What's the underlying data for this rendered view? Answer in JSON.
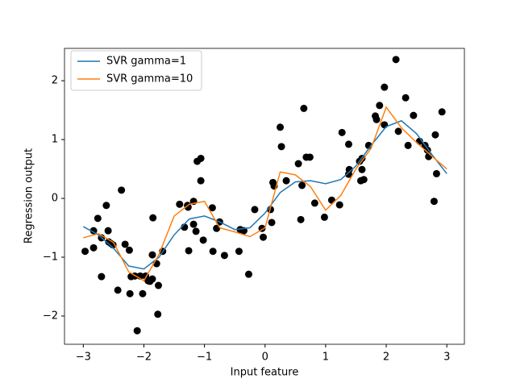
{
  "chart_data": {
    "type": "line",
    "xlabel": "Input feature",
    "ylabel": "Regression output",
    "x": [
      -3,
      -2.75,
      -2.5,
      -2.25,
      -2,
      -1.75,
      -1.5,
      -1.25,
      -1,
      -0.75,
      -0.5,
      -0.25,
      0,
      0.25,
      0.5,
      0.75,
      1,
      1.25,
      1.5,
      1.75,
      2,
      2.25,
      2.5,
      2.75,
      3
    ],
    "series": [
      {
        "name": "SVR gamma=1",
        "color": "#1f77b4",
        "values": [
          -0.48,
          -0.62,
          -0.85,
          -1.15,
          -1.2,
          -1.0,
          -0.62,
          -0.35,
          -0.3,
          -0.4,
          -0.53,
          -0.5,
          -0.25,
          0.1,
          0.28,
          0.3,
          0.25,
          0.32,
          0.55,
          0.9,
          1.22,
          1.32,
          1.1,
          0.75,
          0.42
        ]
      },
      {
        "name": "SVR gamma=10",
        "color": "#ff7f0e",
        "values": [
          -0.67,
          -0.6,
          -0.75,
          -1.25,
          -1.4,
          -0.95,
          -0.3,
          -0.1,
          -0.05,
          -0.5,
          -0.57,
          -0.65,
          -0.5,
          0.45,
          0.4,
          0.2,
          -0.2,
          0.05,
          0.5,
          0.85,
          1.55,
          1.2,
          0.95,
          0.72,
          0.5
        ]
      }
    ],
    "points": {
      "color": "#000000",
      "x": [
        -2.97,
        -2.83,
        -2.83,
        -2.76,
        -2.7,
        -2.7,
        -2.62,
        -2.59,
        -2.58,
        -2.54,
        -2.51,
        -2.43,
        -2.37,
        -2.31,
        -2.24,
        -2.21,
        -2.23,
        -2.15,
        -2.11,
        -2.06,
        -2.02,
        -1.97,
        -1.93,
        -1.9,
        -1.86,
        -1.85,
        -1.86,
        -1.79,
        -1.77,
        -1.76,
        -1.69,
        -1.41,
        -1.33,
        -1.28,
        -1.27,
        -1.26,
        -1.18,
        -1.18,
        -1.14,
        -1.12,
        -1.06,
        -1.06,
        -1.02,
        -0.87,
        -0.86,
        -0.8,
        -0.75,
        -0.67,
        -0.43,
        -0.41,
        -0.35,
        -0.27,
        -0.17,
        -0.05,
        -0.03,
        0.09,
        0.11,
        0.13,
        0.15,
        0.25,
        0.27,
        0.35,
        0.55,
        0.59,
        0.61,
        0.64,
        0.68,
        0.74,
        0.82,
        0.98,
        1.1,
        1.23,
        1.27,
        1.38,
        1.39,
        1.38,
        1.56,
        1.58,
        1.6,
        1.6,
        1.63,
        1.71,
        1.82,
        1.84,
        1.89,
        1.97,
        1.97,
        2.16,
        2.2,
        2.32,
        2.36,
        2.45,
        2.55,
        2.64,
        2.68,
        2.7,
        2.79,
        2.83,
        2.81,
        2.92
      ],
      "values": [
        -0.9,
        -0.55,
        -0.84,
        -0.34,
        -0.67,
        -1.33,
        -0.12,
        -0.55,
        -0.74,
        -0.77,
        -0.79,
        -1.56,
        0.14,
        -0.78,
        -0.88,
        -1.33,
        -1.62,
        -1.32,
        -2.25,
        -1.32,
        -1.62,
        -1.32,
        -1.4,
        -1.41,
        -0.96,
        -0.33,
        -1.37,
        -1.11,
        -1.97,
        -1.48,
        -0.9,
        -0.1,
        -0.49,
        -0.12,
        -0.15,
        -0.89,
        -0.44,
        -0.05,
        -0.56,
        0.63,
        0.68,
        0.3,
        -0.71,
        -0.16,
        -0.9,
        -0.51,
        -0.4,
        -0.97,
        -0.9,
        -0.53,
        -0.55,
        -1.29,
        -0.19,
        -0.51,
        -0.66,
        -0.19,
        -0.41,
        0.27,
        0.21,
        1.21,
        0.88,
        0.3,
        0.59,
        -0.36,
        0.22,
        1.53,
        0.7,
        0.7,
        -0.08,
        -0.32,
        -0.03,
        -0.11,
        1.12,
        0.92,
        0.49,
        0.41,
        0.63,
        0.3,
        0.49,
        0.68,
        0.32,
        0.9,
        1.4,
        1.34,
        1.58,
        1.89,
        1.25,
        2.36,
        1.14,
        1.71,
        0.9,
        1.41,
        0.97,
        0.9,
        0.82,
        0.71,
        -0.05,
        0.42,
        1.08,
        1.47
      ]
    },
    "xlim": [
      -3.31,
      3.29
    ],
    "ylim": [
      -2.48,
      2.55
    ],
    "xticks": [
      {
        "value": -3,
        "label": "−3"
      },
      {
        "value": -2,
        "label": "−2"
      },
      {
        "value": -1,
        "label": "−1"
      },
      0,
      1,
      2,
      3
    ],
    "yticks": [
      {
        "value": -2,
        "label": "−2"
      },
      {
        "value": -1,
        "label": "−1"
      },
      0,
      1,
      2
    ],
    "grid": false,
    "legend": "upper left"
  }
}
